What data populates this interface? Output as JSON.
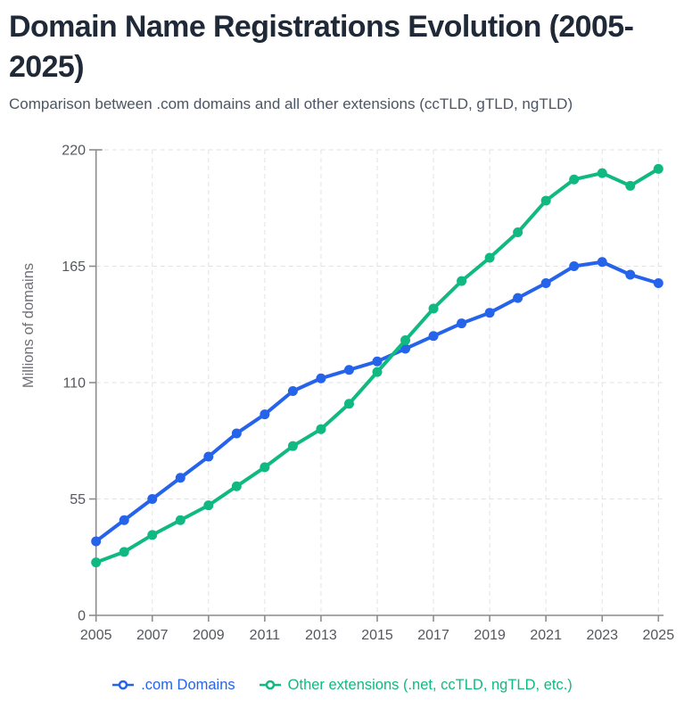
{
  "header": {
    "title": "Domain Name Registrations Evolution (2005-2025)",
    "subtitle": "Comparison between .com domains and all other extensions (ccTLD, gTLD, ngTLD)"
  },
  "chart_data": {
    "type": "line",
    "title": "Domain Name Registrations Evolution (2005-2025)",
    "xlabel": "",
    "ylabel": "Millions of domains",
    "x": [
      2005,
      2006,
      2007,
      2008,
      2009,
      2010,
      2011,
      2012,
      2013,
      2014,
      2015,
      2016,
      2017,
      2018,
      2019,
      2020,
      2021,
      2022,
      2023,
      2024,
      2025
    ],
    "x_tick_labels": [
      "2005",
      "2007",
      "2009",
      "2011",
      "2013",
      "2015",
      "2017",
      "2019",
      "2021",
      "2023",
      "2025"
    ],
    "y_ticks": [
      0,
      55,
      110,
      165,
      220
    ],
    "ylim": [
      0,
      220
    ],
    "grid": true,
    "grid_style": "dashed",
    "legend_position": "bottom",
    "series": [
      {
        "name": ".com Domains",
        "color": "#2563eb",
        "values": [
          35,
          45,
          55,
          65,
          75,
          86,
          95,
          106,
          112,
          116,
          120,
          126,
          132,
          138,
          143,
          150,
          157,
          165,
          167,
          161,
          157
        ]
      },
      {
        "name": "Other extensions (.net, ccTLD, ngTLD, etc.)",
        "color": "#10b981",
        "values": [
          25,
          30,
          38,
          45,
          52,
          61,
          70,
          80,
          88,
          100,
          115,
          130,
          145,
          158,
          169,
          181,
          196,
          206,
          209,
          203,
          211
        ]
      }
    ],
    "style": {
      "grid_color": "#e2e2e2",
      "axis_color": "#8c8c8c",
      "tick_label_color": "#55575c",
      "axis_title_color": "#6e7075",
      "marker_fill": "#ffffff"
    }
  }
}
